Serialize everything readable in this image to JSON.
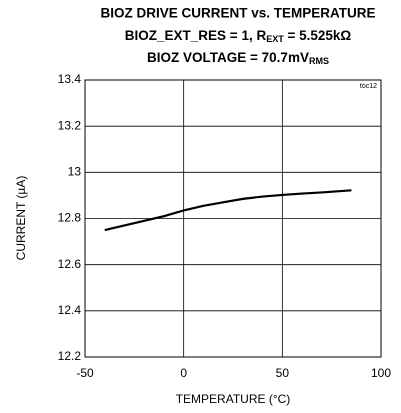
{
  "chart_data": {
    "type": "line",
    "title": "BIOZ DRIVE CURRENT vs. TEMPERATURE",
    "subtitle_parts": [
      "BIOZ_EXT_RES = 1, R",
      "EXT",
      " = 5.525kΩ"
    ],
    "subtitle2_parts": [
      "BIOZ VOLTAGE = 70.7mV",
      "RMS"
    ],
    "annotation": "toc12",
    "x_label": "TEMPERATURE (°C)",
    "y_label": "CURRENT (µA)",
    "x": [
      -40,
      -30,
      -20,
      -10,
      0,
      10,
      20,
      30,
      40,
      50,
      60,
      70,
      85
    ],
    "series": [
      {
        "name": "Current",
        "color": "#000000",
        "values": [
          12.75,
          12.77,
          12.79,
          12.81,
          12.835,
          12.855,
          12.87,
          12.885,
          12.895,
          12.902,
          12.908,
          12.913,
          12.922
        ]
      }
    ],
    "xlim": [
      -50,
      100
    ],
    "xticks": [
      -50,
      0,
      50,
      100
    ],
    "ylim": [
      12.2,
      13.4
    ],
    "yticks": [
      12.2,
      12.4,
      12.6,
      12.8,
      13,
      13.2,
      13.4
    ],
    "grid": true
  }
}
